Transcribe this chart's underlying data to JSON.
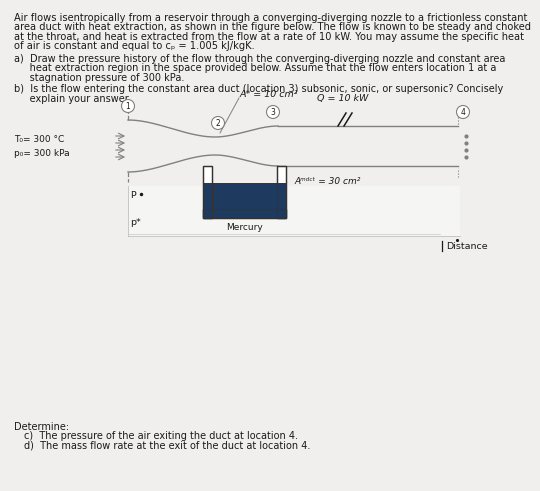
{
  "title_line1": "Air flows isentropically from a reservoir through a converging-diverging nozzle to a frictionless constant",
  "title_line2": "area duct with heat extraction, as shown in the figure below. The flow is known to be steady and choked",
  "title_line3": "at the throat, and heat is extracted from the flow at a rate of 10 kW. You may assume the specific heat",
  "title_line4": "of air is constant and equal to cₚ = 1.005 kJ/kgK.",
  "part_a_line1": "a)  Draw the pressure history of the flow through the converging-diverging nozzle and constant area",
  "part_a_line2": "     heat extraction region in the space provided below. Assume that the flow enters location 1 at a",
  "part_a_line3": "     stagnation pressure of 300 kPa.",
  "part_b_line1": "b)  Is the flow entering the constant area duct (location 3) subsonic, sonic, or supersonic? Concisely",
  "part_b_line2": "     explain your answer.",
  "A_star_label": "A* = 10 cm²",
  "Q_label": "Q = 10 kW",
  "A_duct_label": "Aᵐᵈᶜᵗ = 30 cm²",
  "mercury_label": "Mercury",
  "T0_label": "T₀= 300 °C",
  "p0_label": "p₀= 300 kPa",
  "P_label": "P",
  "Pstar_label": "p*",
  "distance_label": "Distance",
  "determine_text": "Determine:",
  "part_c": "c)  The pressure of the air exiting the duct at location 4.",
  "part_d": "d)  The mass flow rate at the exit of the duct at location 4.",
  "bg_color": "#f0efed",
  "line_color": "#808080",
  "mercury_fill_color": "#1e3a5f",
  "text_color": "#1a1a1a"
}
